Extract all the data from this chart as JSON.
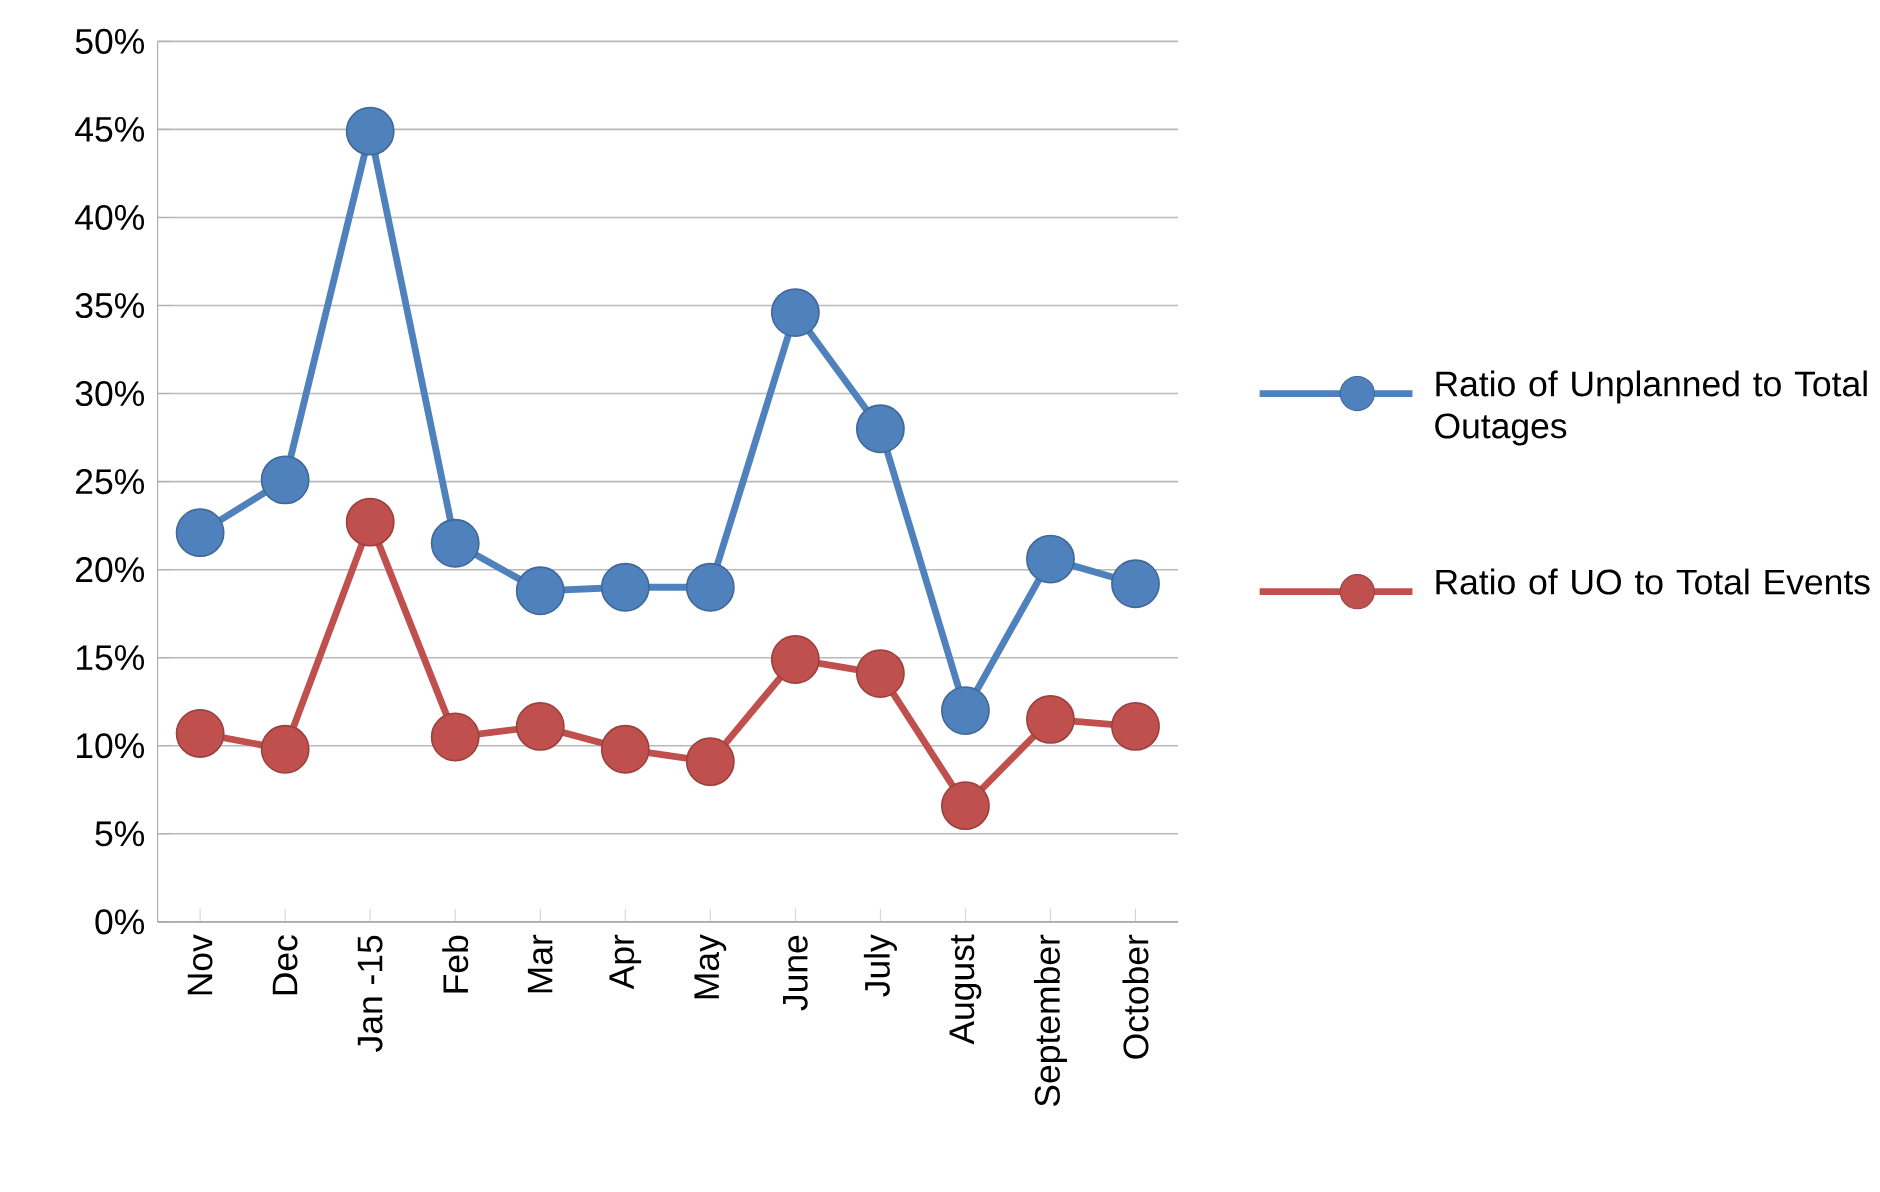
{
  "chart_data": {
    "type": "line",
    "categories": [
      "Nov",
      "Dec",
      "Jan -15",
      "Feb",
      "Mar",
      "Apr",
      "May",
      "June",
      "July",
      "August",
      "September",
      "October"
    ],
    "series": [
      {
        "name": "Ratio of Unplanned to Total Outages",
        "color": "#4f81bd",
        "values": [
          22.1,
          25.1,
          44.9,
          21.5,
          18.8,
          19.0,
          19.0,
          34.6,
          28.0,
          12.0,
          20.6,
          19.2
        ]
      },
      {
        "name": "Ratio of UO to Total Events",
        "color": "#c0504d",
        "values": [
          10.7,
          9.8,
          22.7,
          10.5,
          11.1,
          9.8,
          9.1,
          14.9,
          14.1,
          6.6,
          11.5,
          11.1
        ]
      }
    ],
    "ylim": [
      0,
      50
    ],
    "yticks": [
      {
        "value": 0,
        "label": "0%"
      },
      {
        "value": 5,
        "label": "5%"
      },
      {
        "value": 10,
        "label": "10%"
      },
      {
        "value": 15,
        "label": "15%"
      },
      {
        "value": 20,
        "label": "20%"
      },
      {
        "value": 25,
        "label": "25%"
      },
      {
        "value": 30,
        "label": "30%"
      },
      {
        "value": 35,
        "label": "35%"
      },
      {
        "value": 40,
        "label": "40%"
      },
      {
        "value": 45,
        "label": "45%"
      },
      {
        "value": 50,
        "label": "50%"
      }
    ],
    "grid": "y",
    "legend": "right",
    "marker": "circle",
    "line_style": "solid"
  }
}
